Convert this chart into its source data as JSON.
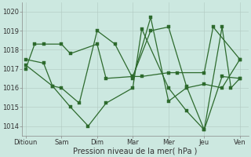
{
  "bg_color": "#cce8e0",
  "grid_color": "#b0c8c0",
  "line_color": "#2d6a2d",
  "xlabel": "Pression niveau de la mer( hPa )",
  "ylim": [
    1013.5,
    1020.5
  ],
  "yticks": [
    1014,
    1015,
    1016,
    1017,
    1018,
    1019,
    1020
  ],
  "xtick_labels": [
    "Ditioun",
    "Sam",
    "Dim",
    "Mar",
    "Mer",
    "Jeu",
    "Ven"
  ],
  "xtick_pos": [
    0,
    48,
    96,
    144,
    192,
    240,
    288
  ],
  "xlim": [
    -5,
    300
  ],
  "series1": {
    "x": [
      0,
      12,
      24,
      48,
      60,
      96,
      108,
      144,
      156,
      192,
      204,
      240,
      252,
      288
    ],
    "y": [
      1017.0,
      1018.3,
      1018.3,
      1018.3,
      1017.8,
      1018.3,
      1016.5,
      1016.6,
      1016.6,
      1016.8,
      1016.8,
      1016.8,
      1019.2,
      1017.5
    ]
  },
  "series2": {
    "x": [
      0,
      24,
      36,
      48,
      72,
      96,
      120,
      144,
      168,
      192,
      216,
      240,
      264,
      288
    ],
    "y": [
      1017.5,
      1017.3,
      1016.1,
      1016.0,
      1015.2,
      1019.0,
      1018.3,
      1016.5,
      1019.7,
      1015.3,
      1016.0,
      1016.2,
      1016.0,
      1017.5
    ]
  },
  "series3": {
    "x": [
      0,
      36,
      60,
      84,
      108,
      144,
      156,
      192,
      216,
      240,
      264,
      288
    ],
    "y": [
      1017.2,
      1016.1,
      1015.0,
      1014.0,
      1015.2,
      1016.0,
      1019.1,
      1016.0,
      1014.8,
      1013.8,
      1016.6,
      1016.5
    ]
  },
  "series4": {
    "x": [
      144,
      168,
      192,
      216,
      240,
      264,
      276,
      288
    ],
    "y": [
      1016.6,
      1019.0,
      1019.2,
      1016.1,
      1013.8,
      1019.2,
      1016.0,
      1016.5
    ]
  }
}
